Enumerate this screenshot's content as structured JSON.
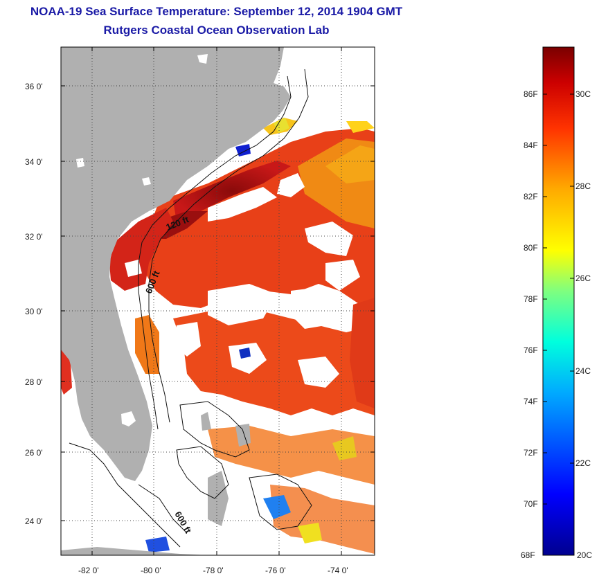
{
  "title": {
    "line1": "NOAA-19 Sea Surface Temperature:  September 12, 2014 1904 GMT",
    "line2": "Rutgers Coastal Ocean Observation Lab"
  },
  "map": {
    "lat_ticks": [
      "36 0'",
      "34 0'",
      "32 0'",
      "30 0'",
      "28 0'",
      "26 0'",
      "24 0'"
    ],
    "lon_ticks": [
      "-82 0'",
      "-80 0'",
      "-78 0'",
      "-76 0'",
      "-74 0'"
    ],
    "contour_labels": [
      "120 ft",
      "600 ft",
      "600 ft"
    ],
    "colors": {
      "land": "#b0b0b0",
      "cloud": "#ffffff",
      "ocean_warm": "#e8391b"
    }
  },
  "colorbar": {
    "f_labels": [
      "86F",
      "84F",
      "82F",
      "80F",
      "78F",
      "76F",
      "74F",
      "72F",
      "70F",
      "68F"
    ],
    "c_labels": [
      "30C",
      "28C",
      "26C",
      "24C",
      "22C",
      "20C"
    ]
  }
}
